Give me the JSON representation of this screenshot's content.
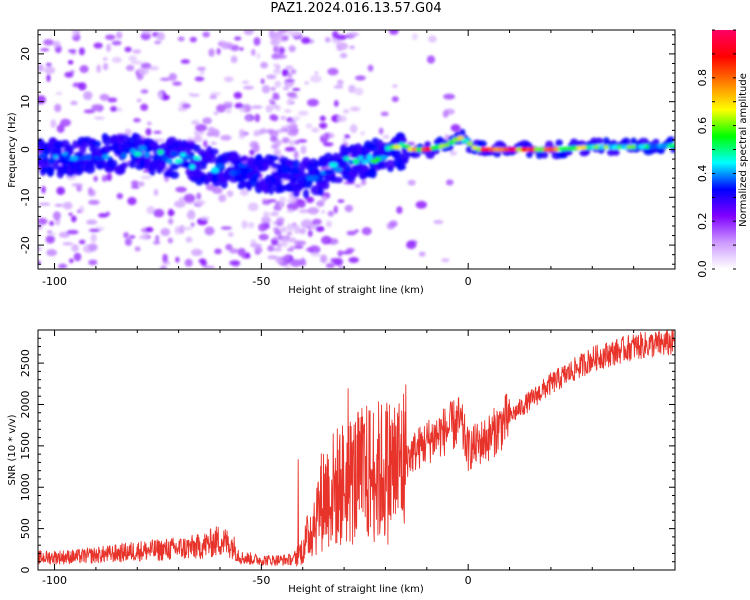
{
  "title": "PAZ1.2024.016.13.57.G04",
  "chart_data": [
    {
      "type": "heatmap",
      "xlabel": "Height of straight line (km)",
      "ylabel": "Frequency (Hz)",
      "xlim": [
        -104,
        50
      ],
      "ylim": [
        -25,
        25
      ],
      "xticks": [
        "-100",
        "-50",
        "0"
      ],
      "yticks": [
        "-20",
        "-10",
        "0",
        "10",
        "20"
      ],
      "colorbar": {
        "label": "Normalized spectral amplitude",
        "range": [
          0,
          1
        ],
        "ticks": [
          "0.0",
          "0.2",
          "0.4",
          "0.6",
          "0.8"
        ],
        "colors": [
          "#ffffff",
          "#cc99ff",
          "#8000ff",
          "#0000ff",
          "#00ffff",
          "#00ff00",
          "#ffff00",
          "#ff8000",
          "#ff0000",
          "#ff0066"
        ]
      },
      "ridge": {
        "x": [
          -103,
          -95,
          -90,
          -85,
          -80,
          -75,
          -70,
          -65,
          -60,
          -55,
          -50,
          -45,
          -40,
          -35,
          -30,
          -25,
          -20,
          -15,
          -10,
          -5,
          -2,
          0,
          2,
          5,
          10,
          20,
          30,
          40,
          50
        ],
        "y": [
          -1.5,
          -2,
          -0.5,
          -1,
          0,
          -1.5,
          -2,
          -3,
          -4,
          -4.5,
          -5,
          -5,
          -6,
          -5.5,
          -3,
          -2,
          -1,
          0,
          0,
          1,
          2.5,
          1.5,
          0,
          0,
          0,
          0,
          0.5,
          0.5,
          0.8
        ],
        "amplitude": [
          0.35,
          0.38,
          0.4,
          0.38,
          0.42,
          0.45,
          0.42,
          0.4,
          0.38,
          0.35,
          0.3,
          0.3,
          0.35,
          0.4,
          0.45,
          0.5,
          0.55,
          0.7,
          0.8,
          0.75,
          0.65,
          0.6,
          0.85,
          0.9,
          0.88,
          0.8,
          0.6,
          0.55,
          0.5
        ]
      }
    },
    {
      "type": "line",
      "xlabel": "Height of straight line (km)",
      "ylabel": "SNR (10 * v/v)",
      "xlim": [
        -104,
        50
      ],
      "ylim": [
        0,
        2900
      ],
      "xticks": [
        "-100",
        "-50",
        "0"
      ],
      "yticks": [
        "0",
        "500",
        "1000",
        "1500",
        "2000",
        "2500"
      ],
      "color": "#e8332b",
      "envelope": {
        "x": [
          -104,
          -95,
          -90,
          -85,
          -80,
          -75,
          -70,
          -65,
          -60,
          -57,
          -55,
          -50,
          -45,
          -42,
          -40,
          -38,
          -35,
          -30,
          -25,
          -20,
          -17,
          -15,
          -10,
          -5,
          -2,
          0,
          5,
          10,
          20,
          30,
          40,
          50
        ],
        "y": [
          150,
          160,
          180,
          200,
          230,
          240,
          260,
          280,
          360,
          300,
          150,
          120,
          120,
          130,
          250,
          500,
          900,
          1050,
          1150,
          1200,
          1250,
          1350,
          1550,
          1700,
          1800,
          1450,
          1600,
          1850,
          2250,
          2550,
          2700,
          2750
        ]
      }
    }
  ]
}
